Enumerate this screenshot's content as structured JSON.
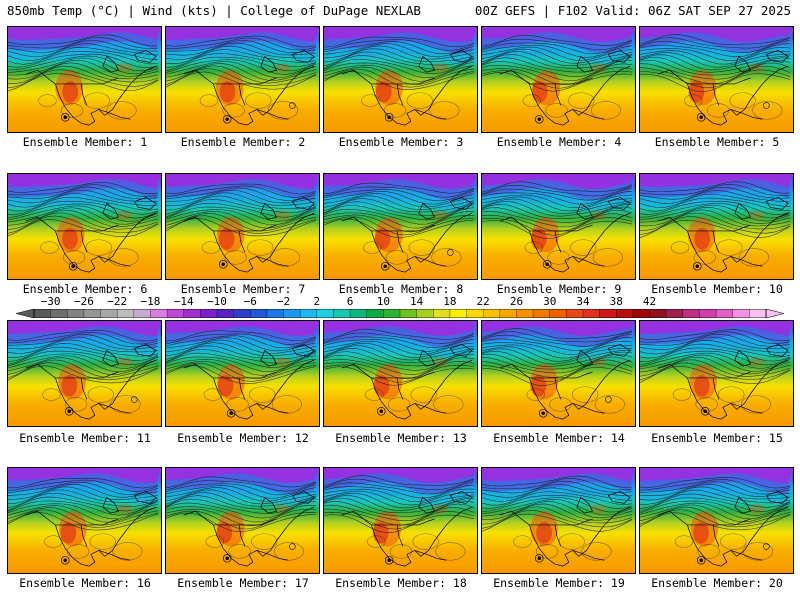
{
  "header": {
    "left_title": "850mb Temp (°C) | Wind (kts) | College of DuPage NEXLAB",
    "right_title": "00Z GEFS | F102 Valid: 06Z SAT SEP 27 2025"
  },
  "panel_caption_prefix": "Ensemble Member: ",
  "members": [
    {
      "caption": "Ensemble Member: 1"
    },
    {
      "caption": "Ensemble Member: 2"
    },
    {
      "caption": "Ensemble Member: 3"
    },
    {
      "caption": "Ensemble Member: 4"
    },
    {
      "caption": "Ensemble Member: 5"
    },
    {
      "caption": "Ensemble Member: 6"
    },
    {
      "caption": "Ensemble Member: 7"
    },
    {
      "caption": "Ensemble Member: 8"
    },
    {
      "caption": "Ensemble Member: 9"
    },
    {
      "caption": "Ensemble Member: 10"
    },
    {
      "caption": "Ensemble Member: 11"
    },
    {
      "caption": "Ensemble Member: 12"
    },
    {
      "caption": "Ensemble Member: 13"
    },
    {
      "caption": "Ensemble Member: 14"
    },
    {
      "caption": "Ensemble Member: 15"
    },
    {
      "caption": "Ensemble Member: 16"
    },
    {
      "caption": "Ensemble Member: 17"
    },
    {
      "caption": "Ensemble Member: 18"
    },
    {
      "caption": "Ensemble Member: 19"
    },
    {
      "caption": "Ensemble Member: 20"
    }
  ],
  "colorbar": {
    "labels": [
      "−30",
      "−26",
      "−22",
      "−18",
      "−14",
      "−10",
      "−6",
      "−2",
      "2",
      "6",
      "10",
      "14",
      "18",
      "22",
      "26",
      "30",
      "34",
      "38",
      "42"
    ],
    "colors": [
      "#5a5a5a",
      "#6e6e6e",
      "#828282",
      "#969696",
      "#a8a8a8",
      "#bdbdbd",
      "#c9a9d4",
      "#d87fe0",
      "#c046d8",
      "#a030d0",
      "#7a20c8",
      "#5428c0",
      "#2f3ec8",
      "#2058d8",
      "#1c78e8",
      "#1c98f0",
      "#20b8f0",
      "#20d0e0",
      "#18c8b0",
      "#10b880",
      "#10a848",
      "#30b030",
      "#70c020",
      "#a8d020",
      "#e0e020",
      "#f8f000",
      "#f8d800",
      "#f8c000",
      "#f8a800",
      "#f89000",
      "#f07800",
      "#f06000",
      "#e84818",
      "#e03020",
      "#d01818",
      "#b81010",
      "#a00808",
      "#901020",
      "#a02050",
      "#c03080",
      "#d040a8",
      "#e060c8",
      "#f090e0",
      "#f8c0f0"
    ]
  }
}
